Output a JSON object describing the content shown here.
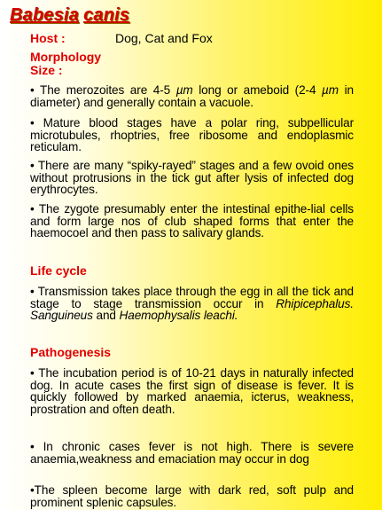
{
  "title": {
    "genus": "Babesia",
    "species": "canis"
  },
  "host": {
    "label": "Host :",
    "value": "Dog, Cat and Fox"
  },
  "morphology": {
    "heading_line1": "Morphology",
    "heading_line2": "Size :",
    "p1_a": "• The merozoites are 4-5 ",
    "p1_unit1": "µm",
    "p1_b": " long or ameboid (2-4 ",
    "p1_unit2": "µm",
    "p1_c": " in diameter) and generally contain a vacuole.",
    "p2": "•  Mature blood stages have a polar ring, subpellicular microtubules, rhoptries, free ribosome and endoplasmic reticulam.",
    "p3": "• There are many “spiky-rayed” stages and a few ovoid ones without protrusions in the tick gut after lysis of infected dog erythrocytes.",
    "p4": "• The zygote presumably enter the intestinal epithe-lial cells and form large nos of club shaped forms that enter the haemocoel and then pass to salivary glands."
  },
  "life_cycle": {
    "heading": "Life cycle",
    "p1_a": "• Transmission takes place through the egg in all the tick and stage to stage transmission occur in ",
    "p1_i1": "Rhipicephalus. Sanguineus",
    "p1_b": " and ",
    "p1_i2": "Haemophysalis leachi.",
    "p1_c": ""
  },
  "pathogenesis": {
    "heading": "Pathogenesis",
    "p1": "• The incubation period is of 10-21 days in naturally infected dog. In acute cases the first sign of disease is fever. It is quickly followed by marked anaemia, icterus, weakness, prostration and often death.",
    "p2": "• In chronic cases fever is not high. There is severe anaemia,weakness and emaciation may occur in dog",
    "p3": "•The spleen become large with dark red, soft pulp and prominent splenic capsules."
  },
  "colors": {
    "heading": "#e00000",
    "title": "#d40000",
    "background_right": "#ffee00"
  }
}
